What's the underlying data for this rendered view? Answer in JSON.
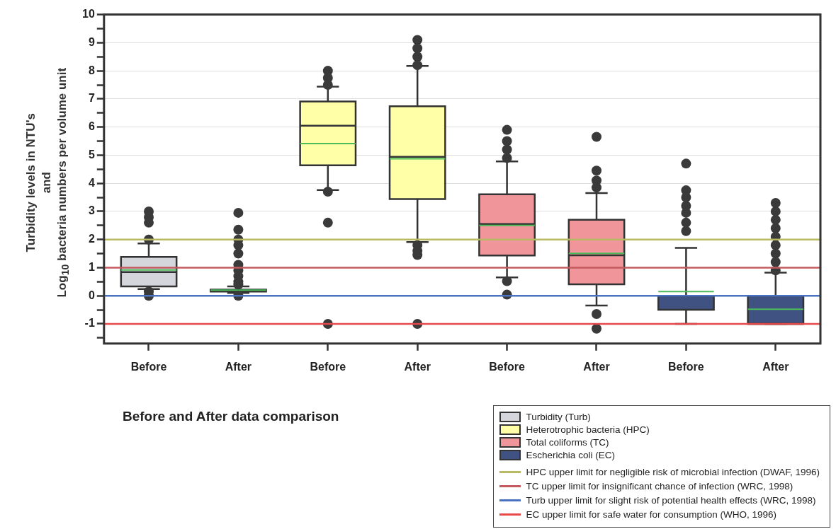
{
  "chart_data": {
    "type": "box",
    "ylabel": "Turbidity levels in NTU's\nand\nLog$_{10}$ bacteria numbers per volume unit",
    "categories": [
      "Before",
      "After",
      "Before",
      "After",
      "Before",
      "After",
      "Before",
      "After"
    ],
    "series": [
      {
        "name": "Turbidity (Turb)",
        "color": "#d4d6db",
        "boxes": [
          {
            "low": 0.24,
            "q1": 0.33,
            "median": 0.84,
            "q3": 1.38,
            "high": 1.86,
            "mean": 0.92,
            "outliers": [
              3.0,
              2.8,
              2.6,
              2.0,
              0.15,
              0.0
            ]
          },
          {
            "low": 0.1,
            "q1": 0.15,
            "median": 0.18,
            "q3": 0.22,
            "high": 0.33,
            "mean": 0.2,
            "outliers": [
              2.95,
              2.35,
              2.0,
              1.8,
              1.5,
              1.1,
              0.9,
              0.7,
              0.5,
              0.4,
              0.0
            ]
          },
          null,
          null,
          null,
          null,
          null,
          null
        ]
      },
      {
        "name": "Heterotrophic bacteria (HPC)",
        "color": "#ffffa8",
        "boxes": [
          null,
          null,
          {
            "low": 3.76,
            "q1": 4.64,
            "median": 6.05,
            "q3": 6.91,
            "high": 7.44,
            "mean": 5.41,
            "outliers": [
              8.0,
              7.75,
              7.5,
              3.7,
              2.6,
              -1.0
            ]
          },
          {
            "low": 1.91,
            "q1": 3.44,
            "median": 4.94,
            "q3": 6.74,
            "high": 8.17,
            "mean": 4.87,
            "outliers": [
              9.1,
              8.8,
              8.5,
              8.2,
              1.8,
              1.6,
              1.45,
              -1.0
            ]
          },
          null,
          null,
          null,
          null
        ]
      },
      {
        "name": "Total coliforms (TC)",
        "color": "#f0959a",
        "boxes": [
          null,
          null,
          null,
          null,
          {
            "low": 0.65,
            "q1": 1.43,
            "median": 2.55,
            "q3": 3.61,
            "high": 4.78,
            "mean": 2.5,
            "outliers": [
              5.9,
              5.5,
              5.2,
              4.9,
              0.52,
              0.04
            ]
          },
          {
            "low": -0.35,
            "q1": 0.41,
            "median": 1.44,
            "q3": 2.7,
            "high": 3.65,
            "mean": 1.51,
            "outliers": [
              5.65,
              4.45,
              4.1,
              3.85,
              -0.65,
              -1.17
            ]
          },
          null,
          null
        ]
      },
      {
        "name": "Escherichia coli (EC)",
        "color": "#3f5282",
        "boxes": [
          null,
          null,
          null,
          null,
          null,
          null,
          {
            "low": -1.0,
            "q1": -0.5,
            "median": 0.0,
            "q3": 0.0,
            "high": 1.7,
            "mean": 0.15,
            "outliers": [
              4.7,
              3.75,
              3.5,
              3.2,
              2.95,
              2.6,
              2.3
            ]
          },
          {
            "low": -1.0,
            "q1": -1.0,
            "median": -1.0,
            "q3": 0.0,
            "high": 0.82,
            "mean": -0.48,
            "outliers": [
              3.3,
              3.0,
              2.7,
              2.4,
              2.1,
              1.8,
              1.5,
              1.2,
              0.9
            ]
          }
        ]
      }
    ],
    "ref_lines": [
      {
        "axis": "y",
        "value": 2,
        "label": "HPC upper limit for negligible risk of microbial infection (DWAF, 1996)",
        "color": "#b8ba62"
      },
      {
        "axis": "y",
        "value": 1,
        "label": "TC upper limit for insignificant chance of infection (WRC, 1998)",
        "color": "#c45a5e"
      },
      {
        "axis": "y",
        "value": 0,
        "label": "Turb upper limit for slight risk of potential health effects (WRC, 1998)",
        "color": "#4a72c2"
      },
      {
        "axis": "y",
        "value": -1,
        "label": "EC upper limit for safe water for consumption (WHO, 1996)",
        "color": "#e84848"
      }
    ],
    "ylim": [
      -1.7,
      10
    ],
    "yticks": [
      {
        "value": -1.5,
        "label": null
      },
      -1,
      {
        "value": -0.5,
        "label": null
      },
      0,
      {
        "value": 0.5,
        "label": null
      },
      1,
      {
        "value": 1.5,
        "label": null
      },
      2,
      {
        "value": 2.5,
        "label": null
      },
      3,
      {
        "value": 3.5,
        "label": null
      },
      4,
      {
        "value": 4.5,
        "label": null
      },
      5,
      {
        "value": 5.5,
        "label": null
      },
      6,
      {
        "value": 6.5,
        "label": null
      },
      7,
      {
        "value": 7.5,
        "label": null
      },
      8,
      {
        "value": 8.5,
        "label": null
      },
      9,
      {
        "value": 9.5,
        "label": null
      },
      10
    ],
    "grid": "y",
    "legend": "bottom right",
    "annotations": [
      "Before and After data comparison"
    ]
  }
}
